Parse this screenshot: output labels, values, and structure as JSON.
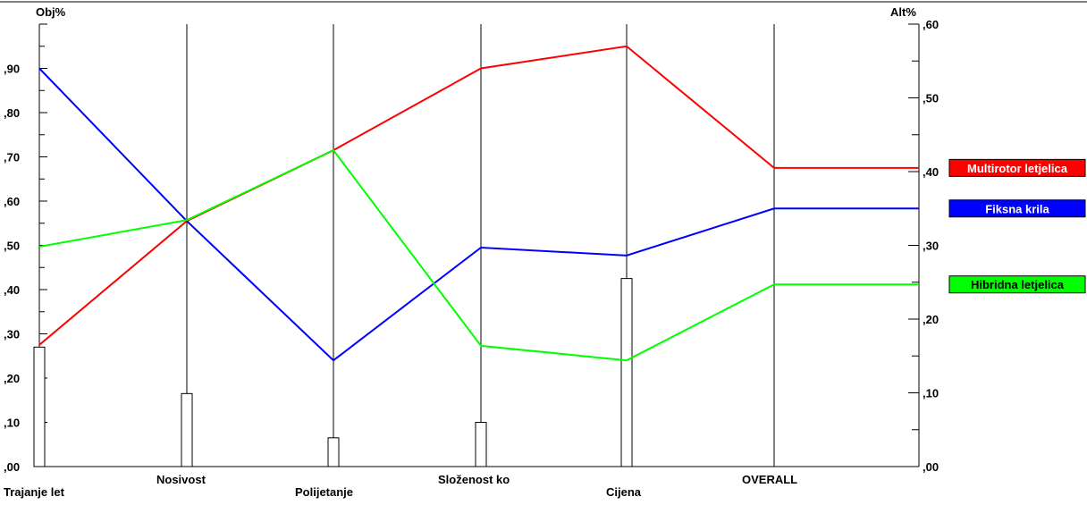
{
  "chart_data": {
    "type": "line",
    "left_axis": {
      "label": "Obj%",
      "range": [
        0,
        1
      ],
      "ticks": [
        ",00",
        ",10",
        ",20",
        ",30",
        ",40",
        ",50",
        ",60",
        ",70",
        ",80",
        ",90"
      ],
      "tick_values": [
        0,
        0.1,
        0.2,
        0.3,
        0.4,
        0.5,
        0.6,
        0.7,
        0.8,
        0.9
      ]
    },
    "right_axis": {
      "label": "Alt%",
      "range": [
        0,
        0.6
      ],
      "ticks": [
        ",00",
        ",10",
        ",20",
        ",30",
        ",40",
        ",50",
        ",60"
      ],
      "tick_values": [
        0,
        0.1,
        0.2,
        0.3,
        0.4,
        0.5,
        0.6
      ]
    },
    "categories": [
      "Trajanje let",
      "Nosivost",
      "Polijetanje",
      "Složenost ko",
      "Cijena",
      "OVERALL"
    ],
    "criterion_weights": [
      0.27,
      0.165,
      0.065,
      0.1,
      0.425,
      null
    ],
    "series": [
      {
        "name": "Multirotor letjelica",
        "color": "#ff0000",
        "values": [
          0.275,
          0.555,
          0.715,
          0.9,
          0.95,
          0.405
        ]
      },
      {
        "name": "Fiksna krila",
        "color": "#0000ff",
        "values": [
          0.9,
          0.555,
          0.24,
          0.495,
          0.477,
          0.35
        ]
      },
      {
        "name": "Hibridna letjelica",
        "color": "#00ff00",
        "values": [
          0.497,
          0.557,
          0.715,
          0.273,
          0.24,
          0.247
        ]
      }
    ],
    "series_value_scale": [
      "left",
      "left",
      "left",
      "left",
      "left",
      "right"
    ],
    "grid": false
  }
}
